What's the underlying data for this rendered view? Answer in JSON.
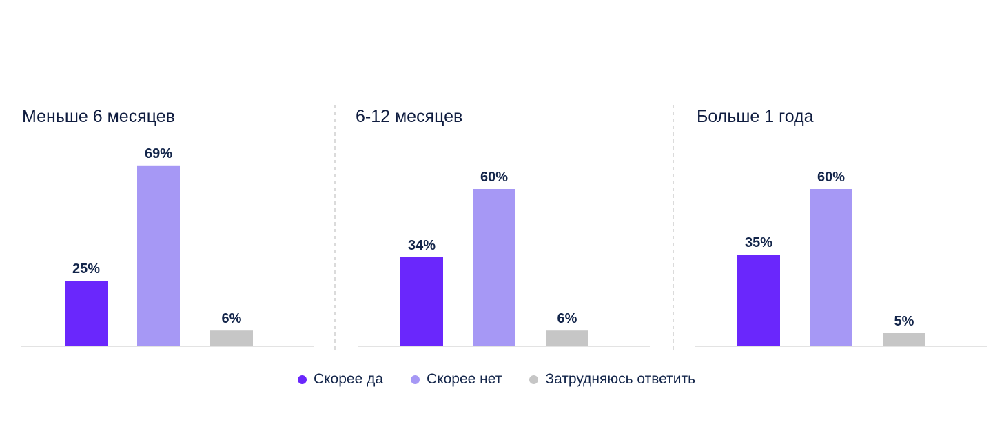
{
  "colors": {
    "yes": "#6a27fc",
    "no": "#a698f5",
    "hard": "#c6c6c6",
    "text": "#13254a"
  },
  "legend": [
    {
      "label": "Скорее да",
      "color_key": "yes"
    },
    {
      "label": "Скорее нет",
      "color_key": "no"
    },
    {
      "label": "Затрудняюсь ответить",
      "color_key": "hard"
    }
  ],
  "chart_data": {
    "type": "bar",
    "categories": [
      "Скорее да",
      "Скорее нет",
      "Затрудняюсь ответить"
    ],
    "unit": "%",
    "legend_position": "bottom",
    "grid": false,
    "panels": [
      {
        "title": "Меньше 6 месяцев",
        "values": [
          25,
          69,
          6
        ],
        "labels": [
          "25%",
          "69%",
          "6%"
        ]
      },
      {
        "title": "6-12 месяцев",
        "values": [
          34,
          60,
          6
        ],
        "labels": [
          "34%",
          "60%",
          "6%"
        ]
      },
      {
        "title": "Больше 1 года",
        "values": [
          35,
          60,
          5
        ],
        "labels": [
          "35%",
          "60%",
          "5%"
        ]
      }
    ]
  }
}
